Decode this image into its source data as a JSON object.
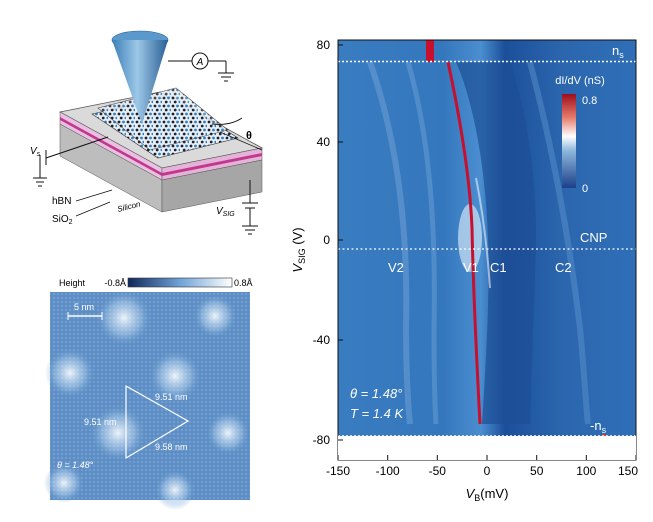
{
  "schematic": {
    "ammeter_label": "A",
    "vs_label": "V",
    "vs_sub": "s",
    "vsig_label": "V",
    "vsig_sub": "SIG",
    "theta_label": "θ",
    "layers": [
      "hBN",
      "SiO",
      "Silicon"
    ],
    "sio2_sub": "2"
  },
  "topography": {
    "colorbar_title": "Height",
    "colorbar_min": "-0.8Å",
    "colorbar_max": "0.8Å",
    "scalebar_label": "5 nm",
    "side_labels": [
      "9.51 nm",
      "9.51 nm",
      "9.58 nm"
    ],
    "angle_note": "θ = 1.48°"
  },
  "map": {
    "yticks": [
      "80",
      "40",
      "0",
      "-40",
      "-80"
    ],
    "xticks": [
      "-150",
      "-100",
      "-50",
      "0",
      "50",
      "100",
      "150"
    ],
    "ylabel_main": "V",
    "ylabel_sub": "SIG",
    "ylabel_unit": " (V)",
    "xlabel_main": "V",
    "xlabel_sub": "B",
    "xlabel_unit": "(mV)",
    "colorbar_label": "dI/dV (nS)",
    "colorbar_max": "0.8",
    "colorbar_min": "0",
    "line_labels": {
      "ns_top": "n",
      "ns_sub": "s",
      "cnp": "CNP",
      "v2": "V2",
      "v1": "V1",
      "c1": "C1",
      "c2": "C2",
      "ns_bottom": "-n"
    },
    "annotation_theta": "θ = 1.48°",
    "annotation_T": "T = 1.4 K",
    "colors": {
      "deep_blue": "#1b4f9a",
      "mid_blue": "#2f6fb8",
      "red": "#c8102e"
    }
  }
}
